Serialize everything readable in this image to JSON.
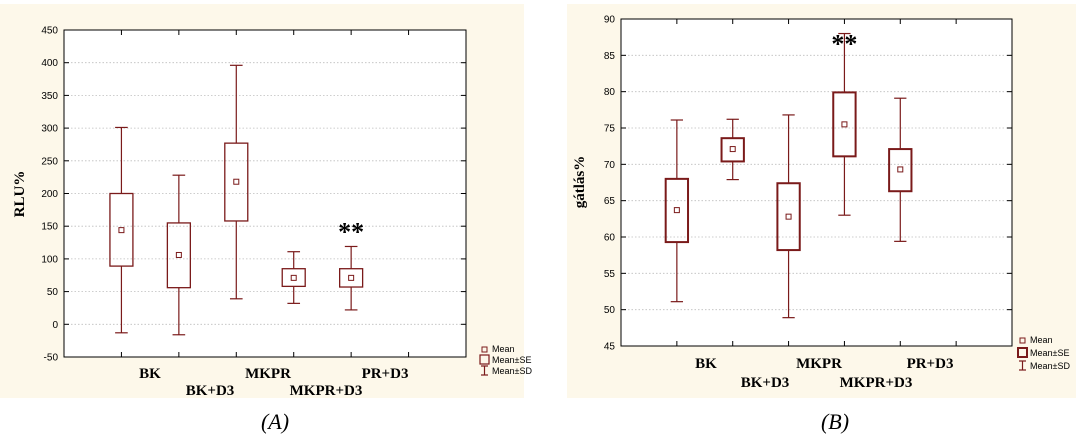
{
  "chart_data": [
    {
      "type": "box",
      "panel": "(A)",
      "ylabel": "RLU%",
      "ylim": [
        -50,
        450
      ],
      "yticks": [
        -50,
        0,
        50,
        100,
        150,
        200,
        250,
        300,
        350,
        400,
        450
      ],
      "grid": true,
      "categories": [
        "BK",
        "BK+D3",
        "MKPR",
        "MKPR+D3",
        "PR+D3"
      ],
      "category_rows": [
        0,
        1,
        0,
        1,
        0
      ],
      "mean": [
        144,
        106,
        218,
        71,
        71
      ],
      "se_low": [
        89,
        56,
        158,
        58,
        57
      ],
      "se_high": [
        200,
        155,
        277,
        85,
        85
      ],
      "sd_low": [
        -13,
        -16,
        39,
        32,
        22
      ],
      "sd_high": [
        301,
        228,
        396,
        111,
        119
      ],
      "annotations": [
        {
          "text": "**",
          "category": "PR+D3"
        }
      ],
      "legend": [
        "Mean",
        "Mean±SE",
        "Mean±SD"
      ],
      "legend_position": "bottom-right"
    },
    {
      "type": "box",
      "panel": "(B)",
      "ylabel": "gátlás%",
      "ylim": [
        45,
        90
      ],
      "yticks": [
        45,
        50,
        55,
        60,
        65,
        70,
        75,
        80,
        85,
        90
      ],
      "grid": true,
      "categories": [
        "BK",
        "BK+D3",
        "MKPR",
        "MKPR+D3",
        "PR+D3"
      ],
      "category_rows": [
        0,
        1,
        0,
        1,
        0
      ],
      "mean": [
        63.7,
        72.1,
        62.8,
        75.5,
        69.3
      ],
      "se_low": [
        59.3,
        70.4,
        58.2,
        71.1,
        66.3
      ],
      "se_high": [
        68.0,
        73.6,
        67.4,
        79.9,
        72.1
      ],
      "sd_low": [
        51.1,
        67.9,
        48.9,
        63.0,
        59.4
      ],
      "sd_high": [
        76.1,
        76.2,
        76.8,
        88.0,
        79.1
      ],
      "annotations": [
        {
          "text": "**",
          "category": "MKPR+D3"
        }
      ],
      "legend": [
        "Mean",
        "Mean±SE",
        "Mean±SD"
      ],
      "legend_position": "bottom-right"
    }
  ],
  "captions": [
    "(A)",
    "(B)"
  ]
}
